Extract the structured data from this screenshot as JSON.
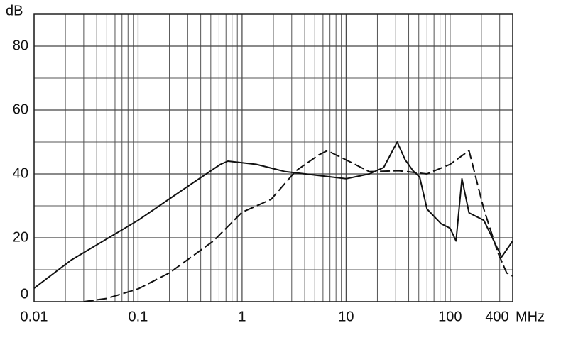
{
  "chart_data": {
    "type": "line",
    "y_label": "dB",
    "x_label": "MHz",
    "xscale": "log",
    "xlim": [
      0.01,
      400
    ],
    "xticks": [
      0.01,
      0.1,
      1,
      10,
      100,
      400
    ],
    "ylim": [
      0,
      90
    ],
    "yticks": [
      0,
      20,
      40,
      60,
      80
    ],
    "grid": true,
    "series": [
      {
        "color": "#111111",
        "style": "solid",
        "x": [
          0.01,
          0.0227,
          0.1,
          0.33,
          0.62,
          0.73,
          1.37,
          2.6,
          10,
          16.7,
          23,
          31,
          37,
          44,
          51,
          60,
          82,
          100,
          114,
          130,
          152,
          211,
          313,
          400
        ],
        "values": [
          4.2,
          13,
          25.5,
          37,
          43,
          44,
          43,
          40.7,
          38.5,
          40,
          42,
          50,
          44.4,
          41,
          39,
          29,
          24.4,
          23,
          19,
          38.5,
          27.8,
          25.5,
          14,
          19
        ]
      },
      {
        "color": "#111111",
        "style": "dashed",
        "x": [
          0.03,
          0.05,
          0.1,
          0.2,
          0.53,
          1,
          1.9,
          3.3,
          5.5,
          6.6,
          10,
          16.7,
          32,
          60,
          100,
          152,
          211,
          287,
          350,
          400
        ],
        "values": [
          0,
          1,
          4,
          9,
          19,
          28,
          32,
          41,
          46,
          47.3,
          44.4,
          40.7,
          41,
          40,
          43,
          47.3,
          29,
          15.5,
          9,
          8
        ]
      }
    ]
  }
}
